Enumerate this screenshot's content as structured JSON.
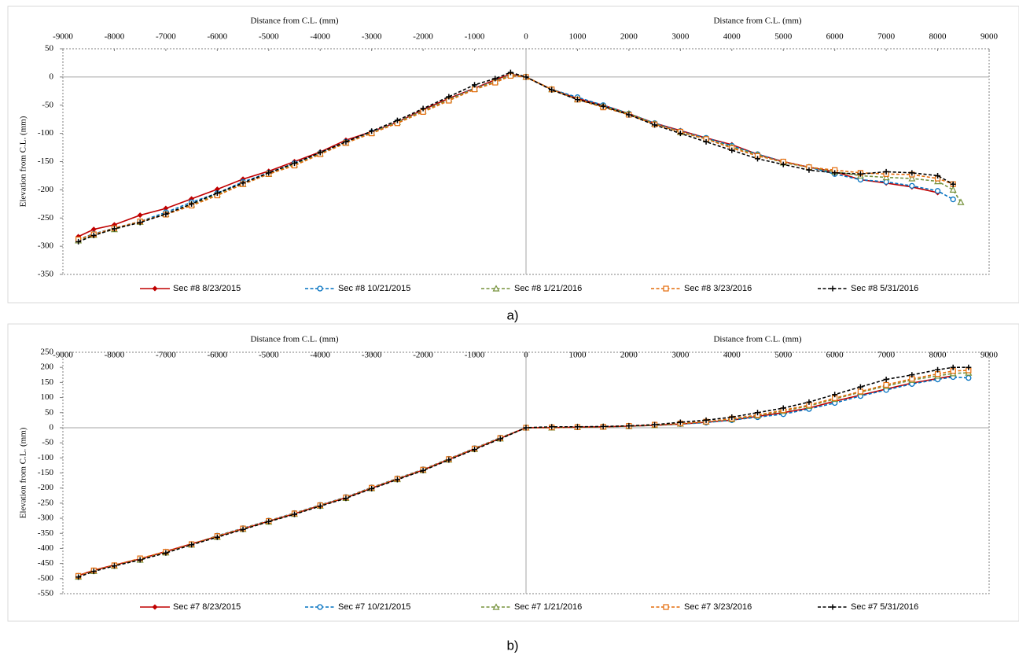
{
  "chart_data": [
    {
      "type": "line",
      "caption": "a)",
      "xlabel": "Distance from C.L. (mm)",
      "ylabel": "Elevation from C.L. (mm)",
      "x": [
        -8700,
        -8400,
        -8000,
        -7500,
        -7000,
        -6500,
        -6000,
        -5500,
        -5000,
        -4500,
        -4000,
        -3500,
        -3000,
        -2500,
        -2000,
        -1500,
        -1000,
        -600,
        -300,
        0,
        500,
        1000,
        1500,
        2000,
        2500,
        3000,
        3500,
        4000,
        4500,
        5000,
        5500,
        6000,
        6500,
        7000,
        7500,
        8000,
        8300,
        8450
      ],
      "xlim": [
        -9000,
        9000
      ],
      "xticks": [
        -9000,
        -8000,
        -7000,
        -6000,
        -5000,
        -4000,
        -3000,
        -2000,
        -1000,
        0,
        1000,
        2000,
        3000,
        4000,
        5000,
        6000,
        7000,
        8000,
        9000
      ],
      "ylim": [
        -350,
        50
      ],
      "yticks": [
        50,
        0,
        -50,
        -100,
        -150,
        -200,
        -250,
        -300,
        -350
      ],
      "grid": false,
      "series": [
        {
          "name": "Sec #8 8/23/2015",
          "color": "#c00000",
          "marker": "diamond",
          "dashed": false,
          "values": [
            -283,
            -270,
            -262,
            -245,
            -233,
            -216,
            -199,
            -181,
            -167,
            -150,
            -133,
            -112,
            -97,
            -80,
            -58,
            -38,
            -20,
            -5,
            5,
            0,
            -22,
            -38,
            -50,
            -65,
            -82,
            -95,
            -108,
            -120,
            -137,
            -150,
            -160,
            -168,
            -182,
            -188,
            -195,
            -205,
            null,
            null
          ]
        },
        {
          "name": "Sec #8 10/21/2015",
          "color": "#0070c0",
          "marker": "circle",
          "dashed": true,
          "values": [
            -288,
            -278,
            -268,
            -256,
            -240,
            -222,
            -206,
            -186,
            -170,
            -153,
            -135,
            -115,
            -98,
            -80,
            -60,
            -40,
            -20,
            -8,
            3,
            0,
            -22,
            -36,
            -50,
            -65,
            -82,
            -96,
            -108,
            -122,
            -137,
            -150,
            -160,
            -172,
            -182,
            -186,
            -193,
            -202,
            -217,
            null
          ]
        },
        {
          "name": "Sec #8 1/21/2016",
          "color": "#76923c",
          "marker": "triangle",
          "dashed": true,
          "values": [
            -290,
            -280,
            -270,
            -257,
            -243,
            -226,
            -208,
            -190,
            -172,
            -155,
            -136,
            -117,
            -99,
            -80,
            -60,
            -40,
            -21,
            -8,
            4,
            0,
            -22,
            -40,
            -52,
            -65,
            -83,
            -98,
            -110,
            -124,
            -138,
            -152,
            -160,
            -168,
            -175,
            -178,
            -180,
            -185,
            -200,
            -222
          ]
        },
        {
          "name": "Sec #8 3/23/2016",
          "color": "#e46c0a",
          "marker": "square",
          "dashed": true,
          "values": [
            -288,
            -279,
            -268,
            -256,
            -244,
            -228,
            -210,
            -190,
            -172,
            -157,
            -137,
            -117,
            -100,
            -82,
            -62,
            -42,
            -22,
            -10,
            2,
            0,
            -22,
            -40,
            -54,
            -67,
            -84,
            -97,
            -110,
            -126,
            -140,
            -150,
            -160,
            -165,
            -170,
            -172,
            -173,
            -180,
            -190,
            null
          ]
        },
        {
          "name": "Sec #8 5/31/2016",
          "color": "#000000",
          "marker": "plus",
          "dashed": true,
          "values": [
            -292,
            -281,
            -269,
            -258,
            -243,
            -225,
            -206,
            -188,
            -170,
            -153,
            -134,
            -115,
            -96,
            -77,
            -56,
            -35,
            -14,
            -3,
            8,
            0,
            -23,
            -40,
            -52,
            -67,
            -85,
            -100,
            -115,
            -130,
            -145,
            -155,
            -165,
            -170,
            -172,
            -168,
            -170,
            -175,
            -190,
            null
          ]
        }
      ]
    },
    {
      "type": "line",
      "caption": "b)",
      "xlabel": "Distance from C.L. (mm)",
      "ylabel": "Elevation from C.L. (mm)",
      "x": [
        -8700,
        -8400,
        -8000,
        -7500,
        -7000,
        -6500,
        -6000,
        -5500,
        -5000,
        -4500,
        -4000,
        -3500,
        -3000,
        -2500,
        -2000,
        -1500,
        -1000,
        -500,
        0,
        500,
        1000,
        1500,
        2000,
        2500,
        3000,
        3500,
        4000,
        4500,
        5000,
        5500,
        6000,
        6500,
        7000,
        7500,
        8000,
        8300,
        8600
      ],
      "xlim": [
        -9000,
        9000
      ],
      "xticks": [
        -9000,
        -8000,
        -7000,
        -6000,
        -5000,
        -4000,
        -3000,
        -2000,
        -1000,
        0,
        1000,
        2000,
        3000,
        4000,
        5000,
        6000,
        7000,
        8000,
        9000
      ],
      "ylim": [
        -550,
        250
      ],
      "yticks": [
        250,
        200,
        150,
        100,
        50,
        0,
        -50,
        -100,
        -150,
        -200,
        -250,
        -300,
        -350,
        -400,
        -450,
        -500,
        -550
      ],
      "grid": false,
      "series": [
        {
          "name": "Sec #7 8/23/2015",
          "color": "#c00000",
          "marker": "diamond",
          "dashed": false,
          "values": [
            -490,
            -472,
            -455,
            -435,
            -410,
            -385,
            -360,
            -335,
            -310,
            -285,
            -258,
            -232,
            -200,
            -170,
            -140,
            -105,
            -70,
            -35,
            0,
            0,
            2,
            3,
            5,
            8,
            12,
            18,
            25,
            38,
            50,
            65,
            88,
            108,
            128,
            148,
            163,
            172,
            null
          ]
        },
        {
          "name": "Sec #7 10/21/2015",
          "color": "#0070c0",
          "marker": "circle",
          "dashed": true,
          "values": [
            -492,
            -474,
            -457,
            -437,
            -412,
            -387,
            -358,
            -333,
            -308,
            -283,
            -256,
            -230,
            -198,
            -168,
            -138,
            -103,
            -68,
            -33,
            0,
            0,
            2,
            3,
            5,
            8,
            12,
            17,
            25,
            35,
            45,
            62,
            82,
            105,
            125,
            145,
            160,
            168,
            165
          ]
        },
        {
          "name": "Sec #7 1/21/2016",
          "color": "#76923c",
          "marker": "triangle",
          "dashed": true,
          "values": [
            -494,
            -475,
            -458,
            -438,
            -414,
            -388,
            -362,
            -336,
            -312,
            -286,
            -259,
            -233,
            -201,
            -171,
            -141,
            -106,
            -71,
            -36,
            0,
            0,
            2,
            3,
            5,
            8,
            13,
            20,
            28,
            40,
            55,
            72,
            95,
            118,
            138,
            158,
            172,
            180,
            182
          ]
        },
        {
          "name": "Sec #7 3/23/2016",
          "color": "#e46c0a",
          "marker": "square",
          "dashed": true,
          "values": [
            -491,
            -473,
            -456,
            -433,
            -411,
            -386,
            -359,
            -334,
            -309,
            -284,
            -257,
            -231,
            -199,
            -169,
            -139,
            -104,
            -69,
            -34,
            0,
            1,
            2,
            3,
            6,
            10,
            14,
            20,
            30,
            42,
            58,
            75,
            98,
            120,
            142,
            162,
            178,
            188,
            190
          ]
        },
        {
          "name": "Sec #7 5/31/2016",
          "color": "#000000",
          "marker": "plus",
          "dashed": true,
          "values": [
            -495,
            -476,
            -458,
            -438,
            -415,
            -388,
            -363,
            -337,
            -311,
            -287,
            -260,
            -234,
            -202,
            -172,
            -142,
            -107,
            -72,
            -37,
            0,
            3,
            3,
            4,
            6,
            10,
            18,
            25,
            35,
            50,
            65,
            85,
            110,
            135,
            160,
            175,
            192,
            200,
            200
          ]
        }
      ]
    }
  ]
}
